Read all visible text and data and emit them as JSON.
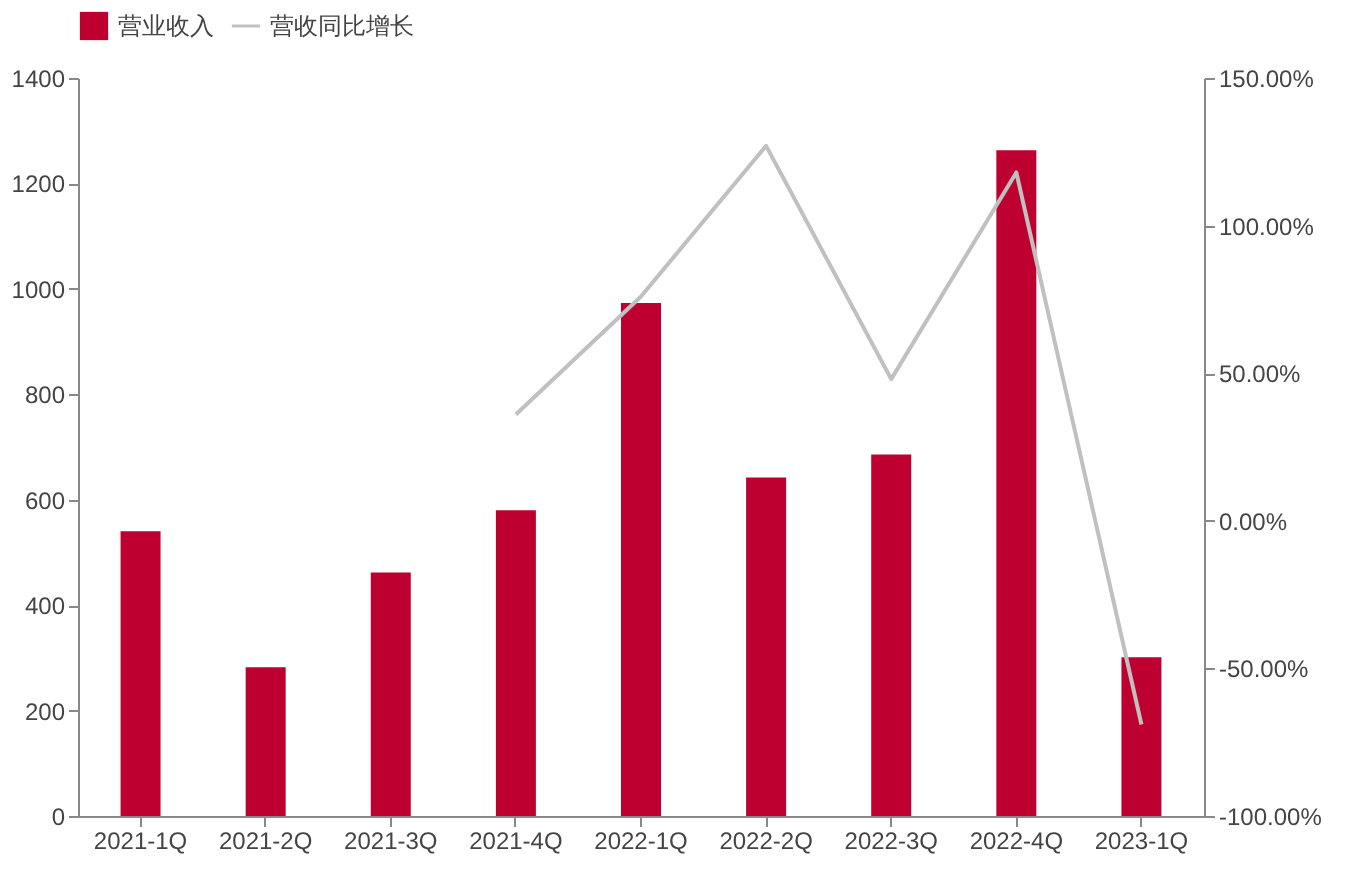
{
  "chart_data": {
    "type": "bar",
    "categories": [
      "2021-1Q",
      "2021-2Q",
      "2021-3Q",
      "2021-4Q",
      "2022-1Q",
      "2022-2Q",
      "2022-3Q",
      "2022-4Q",
      "2023-1Q"
    ],
    "series": [
      {
        "name": "营业收入",
        "color": "#be0030",
        "values": [
          540,
          282,
          462,
          580,
          973,
          642,
          686,
          1263,
          301
        ]
      },
      {
        "name": "营收同比增长",
        "type": "line",
        "axis": "y2",
        "color": "#c0c0c0",
        "values": [
          null,
          null,
          null,
          36,
          76,
          127,
          48,
          118,
          -69
        ]
      }
    ],
    "ylim": [
      0,
      1400
    ],
    "yticks": [
      0,
      200,
      400,
      600,
      800,
      1000,
      1200,
      1400
    ],
    "y2lim": [
      -100,
      150
    ],
    "y2ticks": [
      {
        "value": -100,
        "label": "-100.00%"
      },
      {
        "value": -50,
        "label": "-50.00%"
      },
      {
        "value": 0,
        "label": "0.00%"
      },
      {
        "value": 50,
        "label": "50.00%"
      },
      {
        "value": 100,
        "label": "100.00%"
      },
      {
        "value": 150,
        "label": "150.00%"
      }
    ],
    "legend": "top",
    "grid": false,
    "marker": "none",
    "line_style": "solid"
  }
}
